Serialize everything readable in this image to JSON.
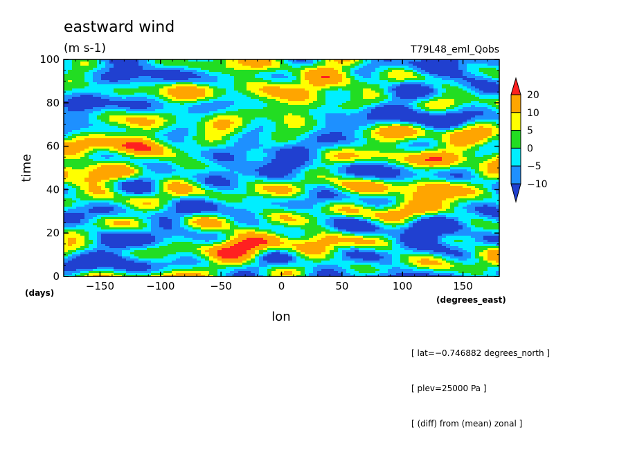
{
  "chart_data": {
    "type": "heatmap",
    "title": "eastward wind",
    "units": "(m s-1)",
    "experiment": "T79L48_eml_Qobs",
    "xlabel": "lon",
    "ylabel": "time",
    "x_unit_label": "(degrees_east)",
    "y_unit_label": "(days)",
    "xlim": [
      -180,
      180
    ],
    "ylim": [
      0,
      100
    ],
    "x_ticks": [
      -150,
      -100,
      -50,
      0,
      50,
      100,
      150
    ],
    "y_ticks": [
      0,
      20,
      40,
      60,
      80,
      100
    ],
    "x_tick_labels": [
      "−150",
      "−100",
      "−50",
      "0",
      "50",
      "100",
      "150"
    ],
    "y_tick_labels": [
      "0",
      "20",
      "40",
      "60",
      "80",
      "100"
    ],
    "levels": [
      -10,
      -5,
      0,
      5,
      10,
      20
    ],
    "level_labels": [
      "20",
      "10",
      "5",
      "0",
      "−5",
      "−10"
    ],
    "colors": [
      "#2040d0",
      "#1e90ff",
      "#00eeff",
      "#22dd22",
      "#ffff00",
      "#ffa500",
      "#ff2020"
    ],
    "notes": [
      "[ lat=−0.746882 degrees_north ]",
      "[ plev=25000 Pa ]",
      "[ (diff) from (mean) zonal ]"
    ]
  }
}
